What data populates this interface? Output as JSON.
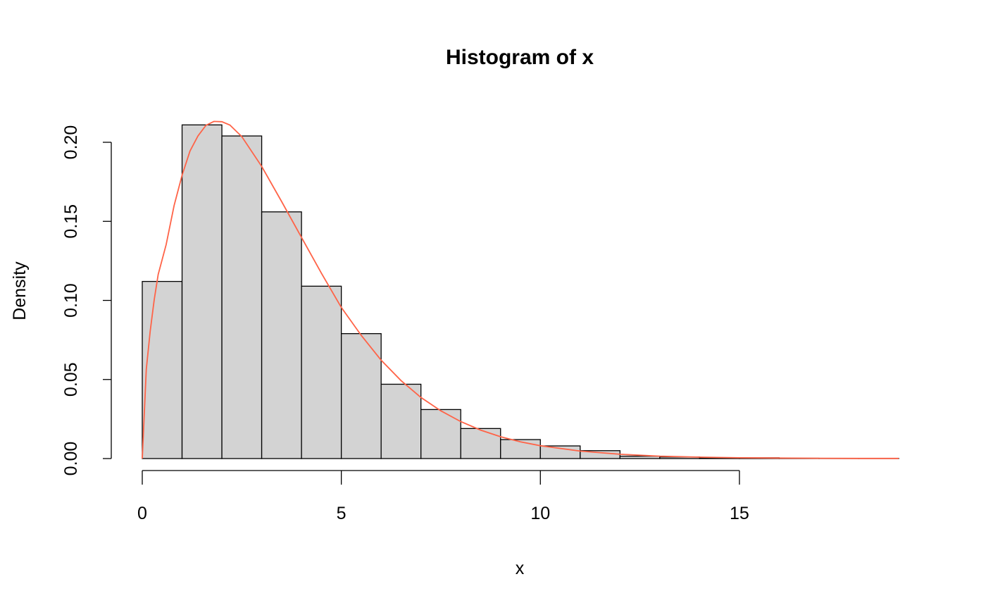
{
  "chart_data": {
    "type": "bar",
    "subtype": "histogram-with-density-curve",
    "title": "Histogram of x",
    "xlabel": "x",
    "ylabel": "Density",
    "xlim": [
      0,
      19
    ],
    "ylim": [
      0,
      0.21
    ],
    "x_ticks": [
      0,
      5,
      10,
      15
    ],
    "x_tick_labels": [
      "0",
      "5",
      "10",
      "15"
    ],
    "y_ticks": [
      0,
      0.05,
      0.1,
      0.15,
      0.2
    ],
    "y_tick_labels": [
      "0.00",
      "0.05",
      "0.10",
      "0.15",
      "0.20"
    ],
    "bin_edges": [
      0,
      1,
      2,
      3,
      4,
      5,
      6,
      7,
      8,
      9,
      10,
      11,
      12,
      13,
      14,
      15,
      16,
      17,
      18,
      19
    ],
    "densities": [
      0.112,
      0.211,
      0.204,
      0.156,
      0.109,
      0.079,
      0.047,
      0.031,
      0.019,
      0.012,
      0.008,
      0.005,
      0.0015,
      0.001,
      0.0005,
      0.0005,
      0.0002,
      0.0001,
      0.0001
    ],
    "bar_fill": "#d3d3d3",
    "bar_border": "#000000",
    "density_curve": {
      "color": "#ff6347",
      "x": [
        0,
        0.1,
        0.2,
        0.3,
        0.4,
        0.6,
        0.8,
        1.0,
        1.2,
        1.4,
        1.6,
        1.8,
        2.0,
        2.2,
        2.5,
        3,
        3.5,
        4,
        4.5,
        5,
        5.5,
        6,
        6.5,
        7,
        7.5,
        8,
        8.5,
        9,
        9.5,
        10,
        11,
        12,
        13,
        14,
        15,
        16,
        17,
        18,
        19
      ],
      "y": [
        0,
        0.0564,
        0.0807,
        0.1006,
        0.1164,
        0.1353,
        0.16,
        0.1791,
        0.1945,
        0.204,
        0.2107,
        0.2132,
        0.213,
        0.2109,
        0.2036,
        0.1847,
        0.1626,
        0.1398,
        0.1172,
        0.0956,
        0.0779,
        0.0622,
        0.0493,
        0.0386,
        0.0302,
        0.0234,
        0.018,
        0.0138,
        0.0106,
        0.0081,
        0.0047,
        0.0027,
        0.0015,
        0.0009,
        0.0005,
        0.0003,
        0.0002,
        0.0001,
        0.0001
      ]
    }
  }
}
